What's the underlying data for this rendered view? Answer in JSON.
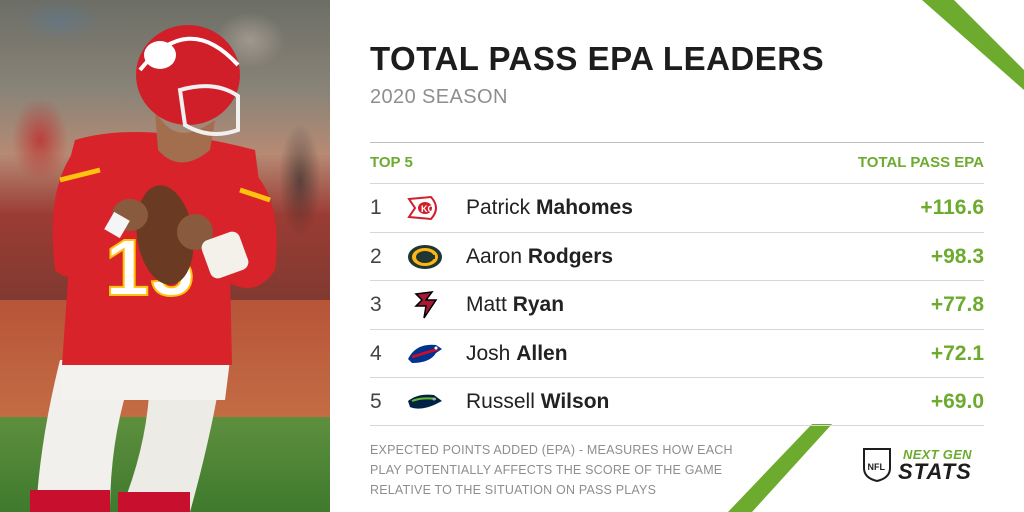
{
  "header": {
    "title": "TOTAL PASS EPA LEADERS",
    "subtitle": "2020 SEASON"
  },
  "table": {
    "left_header": "TOP 5",
    "right_header": "TOTAL PASS EPA",
    "rows": [
      {
        "rank": "1",
        "first": "Patrick",
        "last": "Mahomes",
        "epa": "+116.6",
        "team_icon": "chiefs-logo"
      },
      {
        "rank": "2",
        "first": "Aaron",
        "last": "Rodgers",
        "epa": "+98.3",
        "team_icon": "packers-logo"
      },
      {
        "rank": "3",
        "first": "Matt",
        "last": "Ryan",
        "epa": "+77.8",
        "team_icon": "falcons-logo"
      },
      {
        "rank": "4",
        "first": "Josh",
        "last": "Allen",
        "epa": "+72.1",
        "team_icon": "bills-logo"
      },
      {
        "rank": "5",
        "first": "Russell",
        "last": "Wilson",
        "epa": "+69.0",
        "team_icon": "seahawks-logo"
      }
    ]
  },
  "footnote": "EXPECTED POINTS ADDED (EPA) - MEASURES HOW EACH PLAY POTENTIALLY AFFECTS THE SCORE OF THE GAME RELATIVE TO THE SITUATION ON PASS PLAYS",
  "branding": {
    "next": "NEXT GEN",
    "stats": "STATS",
    "shield": "NFL"
  },
  "colors": {
    "accent_green": "#6cab2e",
    "title": "#1d1d1d",
    "muted": "#8e8e8e"
  }
}
